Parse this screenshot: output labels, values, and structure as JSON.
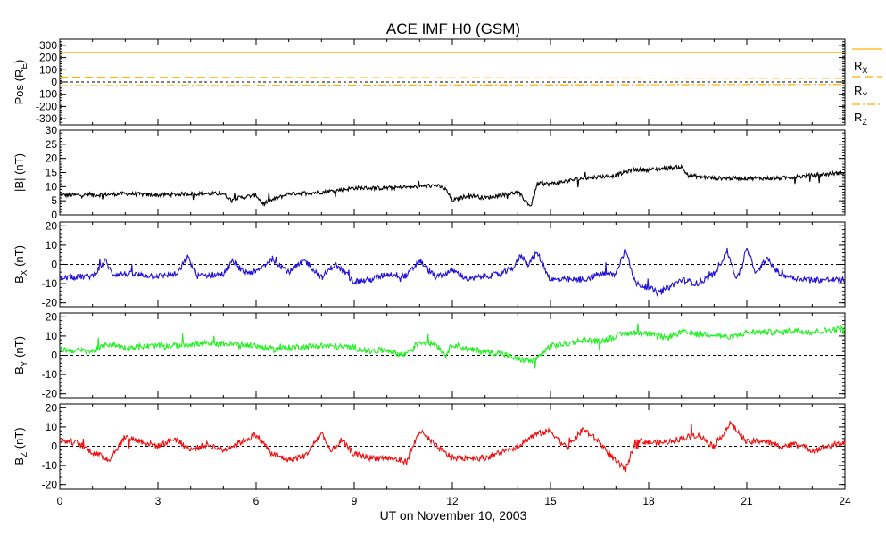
{
  "chart_data": {
    "type": "line",
    "title": "ACE IMF H0 (GSM)",
    "xlabel": "UT on November 10, 2003",
    "x_range": [
      0,
      24
    ],
    "x_ticks": [
      "0",
      "3",
      "6",
      "9",
      "12",
      "15",
      "18",
      "21",
      "24"
    ],
    "panels": [
      {
        "id": "pos",
        "ylabel_main": "Pos (R",
        "ylabel_sub": "E",
        "ylabel_tail": ")",
        "ylim": [
          -350,
          350
        ],
        "yticks": [
          300,
          200,
          100,
          0,
          -100,
          -200,
          -300
        ],
        "ytick_labels": [
          "300",
          "200",
          "100",
          "0",
          "-100",
          "-200",
          "-300"
        ],
        "zero_line": true,
        "series": [
          {
            "name": "R",
            "sub": "X",
            "color": "#ffb000",
            "dash": "",
            "x": [
              0,
              24
            ],
            "y": [
              242,
              242
            ]
          },
          {
            "name": "R",
            "sub": "Y",
            "color": "#ffb000",
            "dash": "9,5",
            "x": [
              0,
              24
            ],
            "y": [
              40,
              30
            ]
          },
          {
            "name": "R",
            "sub": "Z",
            "color": "#ffb000",
            "dash": "9,3,2,3",
            "x": [
              0,
              24
            ],
            "y": [
              -30,
              -20
            ]
          }
        ]
      },
      {
        "id": "bmag",
        "ylabel_main": "|B| (nT)",
        "ylabel_sub": "",
        "ylabel_tail": "",
        "ylim": [
          0,
          30
        ],
        "yticks": [
          30,
          25,
          20,
          15,
          10,
          5,
          0
        ],
        "ytick_labels": [
          "30",
          "25",
          "20",
          "15",
          "10",
          "5",
          "0"
        ],
        "zero_line": false,
        "series": [
          {
            "name": "|B|",
            "color": "#000000",
            "x": [
              0,
              1,
              2,
              3,
              4,
              5,
              5.2,
              6,
              6.2,
              7,
              8,
              9,
              10,
              11,
              11.5,
              11.8,
              12,
              12.5,
              13,
              13.5,
              14,
              14.4,
              14.6,
              15,
              16,
              17,
              17.5,
              18,
              19,
              19.2,
              20,
              21,
              22,
              23,
              24
            ],
            "y": [
              7,
              7,
              7.5,
              7,
              7.5,
              7.5,
              5.5,
              7,
              4,
              7.5,
              8,
              9.5,
              9.5,
              10,
              10.5,
              9,
              5,
              7,
              6,
              7,
              8,
              3,
              11,
              11,
              13,
              14,
              16,
              16,
              17,
              14,
              13,
              13,
              13,
              14,
              15
            ]
          }
        ]
      },
      {
        "id": "bx",
        "ylabel_main": "B",
        "ylabel_sub": "X",
        "ylabel_tail": " (nT)",
        "ylim": [
          -22,
          22
        ],
        "yticks": [
          20,
          10,
          0,
          -10,
          -20
        ],
        "ytick_labels": [
          "20",
          "10",
          "0",
          "-10",
          "-20"
        ],
        "zero_line": true,
        "series": [
          {
            "name": "B_X",
            "color": "#2010d8",
            "x": [
              0,
              1,
              1.4,
              1.6,
              2,
              3,
              3.6,
              3.9,
              4.2,
              5,
              5.3,
              5.6,
              6,
              6.5,
              7,
              7.5,
              8,
              8.4,
              8.7,
              9,
              9.5,
              10,
              10.6,
              11,
              11.5,
              12,
              12.5,
              13,
              13.5,
              13.9,
              14.1,
              14.3,
              14.6,
              15,
              16,
              16.5,
              17,
              17.3,
              17.6,
              18,
              18.3,
              19,
              19.5,
              20,
              20.4,
              20.7,
              21,
              21.3,
              21.6,
              22,
              22.5,
              23,
              24
            ],
            "y": [
              -7,
              -6,
              2,
              -5,
              -5,
              -6,
              -5,
              4,
              -6,
              -5,
              2,
              -4,
              -4,
              3,
              -4,
              2,
              -7,
              0,
              -4,
              -9,
              -8,
              -5,
              -6,
              2,
              -7,
              -3,
              -8,
              -6,
              -5,
              -1,
              5,
              0,
              6,
              -8,
              -8,
              -5,
              -5,
              8,
              -10,
              -12,
              -15,
              -8,
              -10,
              -5,
              7,
              -8,
              8,
              -5,
              3,
              -5,
              -7,
              -8,
              -8
            ]
          }
        ]
      },
      {
        "id": "by",
        "ylabel_main": "B",
        "ylabel_sub": "Y",
        "ylabel_tail": " (nT)",
        "ylim": [
          -22,
          22
        ],
        "yticks": [
          20,
          10,
          0,
          -10,
          -20
        ],
        "ytick_labels": [
          "20",
          "10",
          "0",
          "-10",
          "-20"
        ],
        "zero_line": true,
        "series": [
          {
            "name": "B_Y",
            "color": "#20f020",
            "x": [
              0,
              1,
              1.5,
              2,
              3,
              3.5,
              4,
              5,
              6,
              6.5,
              7,
              8,
              9,
              9.5,
              10,
              10.5,
              11,
              11.5,
              11.8,
              12,
              12.5,
              13,
              13.5,
              14,
              14.5,
              15,
              15.5,
              16,
              16.5,
              17,
              17.5,
              18,
              18.5,
              19,
              19.5,
              20,
              20.5,
              21,
              21.5,
              22,
              22.5,
              23,
              23.5,
              24
            ],
            "y": [
              3,
              2,
              6,
              4,
              5,
              5,
              6,
              6,
              5,
              3,
              4,
              5,
              4,
              2,
              3,
              0,
              7,
              6,
              0,
              6,
              3,
              2,
              1,
              -2,
              -3,
              5,
              6,
              8,
              7,
              10,
              12,
              11,
              9,
              12,
              11,
              11,
              9,
              12,
              12,
              12,
              13,
              12,
              13,
              14
            ]
          }
        ]
      },
      {
        "id": "bz",
        "ylabel_main": "B",
        "ylabel_sub": "Z",
        "ylabel_tail": " (nT)",
        "ylim": [
          -22,
          22
        ],
        "yticks": [
          20,
          10,
          0,
          -10,
          -20
        ],
        "ytick_labels": [
          "20",
          "10",
          "0",
          "-10",
          "-20"
        ],
        "zero_line": true,
        "series": [
          {
            "name": "B_Z",
            "color": "#ee1010",
            "x": [
              0,
              0.5,
              1,
              1.5,
              2,
              3,
              3.5,
              4,
              4.5,
              5,
              5.5,
              6,
              6.5,
              7,
              7.5,
              8,
              8.3,
              8.6,
              9,
              9.5,
              10,
              10.6,
              11,
              11.5,
              12,
              12.5,
              13,
              13.5,
              14,
              14.5,
              15,
              15.5,
              16,
              16.5,
              17,
              17.3,
              17.6,
              18,
              18.5,
              19,
              19.5,
              20,
              20.5,
              21,
              21.5,
              22,
              22.5,
              23,
              23.5,
              24
            ],
            "y": [
              3,
              2,
              -3,
              -7,
              5,
              0,
              4,
              -2,
              1,
              -2,
              2,
              6,
              -4,
              -7,
              -5,
              7,
              -3,
              3,
              -4,
              -6,
              -6,
              -8,
              8,
              0,
              -6,
              -6,
              -6,
              -3,
              0,
              6,
              8,
              -1,
              9,
              2,
              -8,
              -12,
              3,
              2,
              2,
              4,
              6,
              0,
              12,
              2,
              3,
              0,
              1,
              -2,
              0,
              2
            ]
          }
        ]
      }
    ]
  }
}
